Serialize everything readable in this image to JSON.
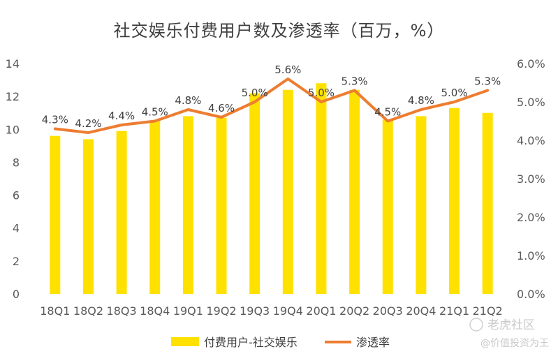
{
  "chart_data": {
    "type": "bar",
    "title": "社交娱乐付费用户数及渗透率（百万，%）",
    "categories": [
      "18Q1",
      "18Q2",
      "18Q3",
      "18Q4",
      "19Q1",
      "19Q2",
      "19Q3",
      "19Q4",
      "20Q1",
      "20Q2",
      "20Q3",
      "20Q4",
      "21Q1",
      "21Q2"
    ],
    "series": [
      {
        "name": "付费用户-社交娱乐",
        "kind": "bar",
        "axis": "left",
        "color": "#FFE100",
        "values": [
          9.6,
          9.4,
          9.9,
          10.5,
          10.8,
          10.7,
          12.2,
          12.4,
          12.8,
          12.4,
          10.6,
          10.8,
          11.3,
          11.0
        ]
      },
      {
        "name": "渗透率",
        "kind": "line",
        "axis": "right",
        "color": "#ED7D31",
        "values": [
          4.3,
          4.2,
          4.4,
          4.5,
          4.8,
          4.6,
          5.0,
          5.6,
          5.0,
          5.3,
          4.5,
          4.8,
          5.0,
          5.3
        ],
        "labels": [
          "4.3%",
          "4.2%",
          "4.4%",
          "4.5%",
          "4.8%",
          "4.6%",
          "5.0%",
          "5.6%",
          "5.0%",
          "5.3%",
          "4.5%",
          "4.8%",
          "5.0%",
          "5.3%"
        ]
      }
    ],
    "ylim_left": [
      0,
      14
    ],
    "yticks_left": [
      "0",
      "2",
      "4",
      "6",
      "8",
      "10",
      "12",
      "14"
    ],
    "ylim_right": [
      0,
      6
    ],
    "yticks_right": [
      "0.0%",
      "1.0%",
      "2.0%",
      "3.0%",
      "4.0%",
      "5.0%",
      "6.0%"
    ],
    "grid": false,
    "legend": "bottom"
  },
  "watermark": {
    "line1": "老虎社区",
    "line2": "@价值投资为王"
  }
}
